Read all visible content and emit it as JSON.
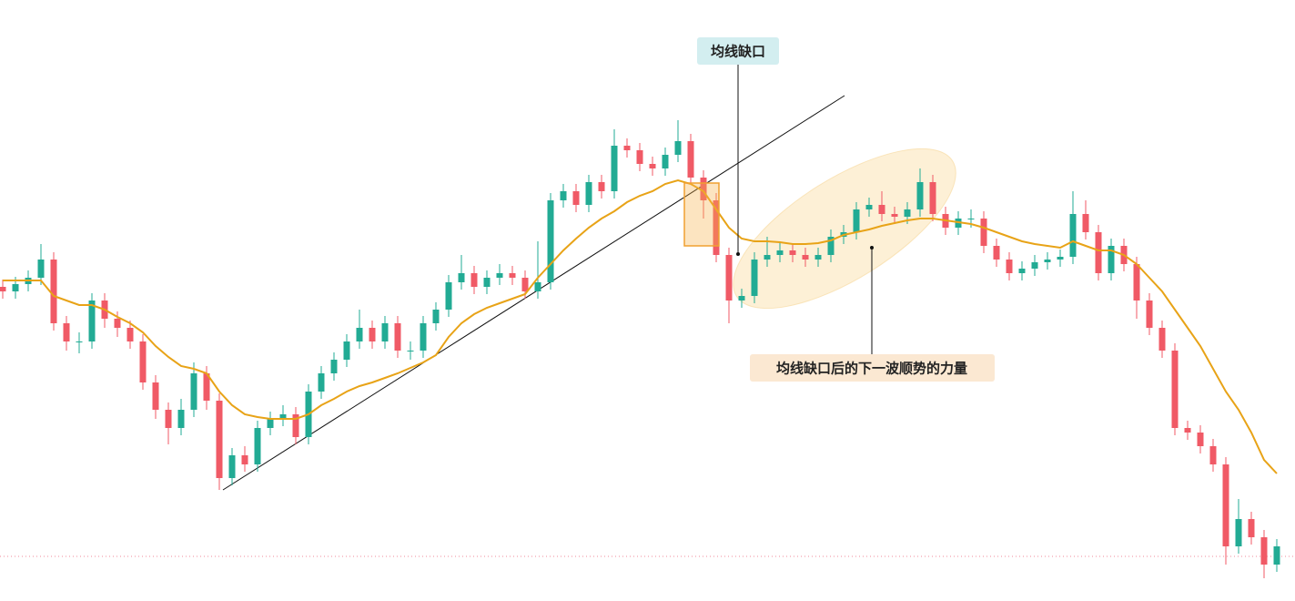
{
  "chart_data": {
    "type": "candlestick",
    "annotations": [
      "均线缺口",
      "均线缺口后的下一波顺势的力量"
    ],
    "ylim": [
      0,
      660
    ],
    "up_color": "#22ab94",
    "down_color": "#f05a66",
    "candles": {
      "open": [
        345,
        340,
        348,
        355,
        375,
        305,
        285,
        285,
        330,
        310,
        300,
        285,
        240,
        210,
        190,
        210,
        250,
        220,
        135,
        160,
        150,
        190,
        200,
        205,
        180,
        230,
        250,
        265,
        285,
        300,
        285,
        305,
        275,
        275,
        305,
        320,
        350,
        360,
        345,
        355,
        360,
        355,
        340,
        350,
        440,
        450,
        435,
        460,
        450,
        500,
        495,
        480,
        475,
        490,
        505,
        465,
        440,
        380,
        330,
        335,
        375,
        380,
        385,
        380,
        375,
        380,
        400,
        405,
        430,
        435,
        425,
        422,
        430,
        460,
        425,
        410,
        420,
        420,
        390,
        375,
        360,
        365,
        372,
        375,
        378,
        425,
        405,
        360,
        390,
        370,
        330,
        300,
        275,
        190,
        185,
        170,
        150,
        60,
        90,
        70,
        40
      ],
      "high": [
        353,
        356,
        363,
        392,
        383,
        313,
        295,
        338,
        338,
        318,
        308,
        293,
        248,
        218,
        222,
        262,
        258,
        228,
        168,
        170,
        198,
        208,
        215,
        213,
        238,
        258,
        273,
        293,
        320,
        308,
        313,
        313,
        285,
        313,
        328,
        358,
        380,
        368,
        363,
        370,
        368,
        363,
        395,
        448,
        458,
        458,
        468,
        468,
        518,
        508,
        503,
        488,
        498,
        528,
        513,
        473,
        448,
        388,
        343,
        383,
        400,
        393,
        393,
        388,
        388,
        408,
        413,
        438,
        443,
        450,
        433,
        438,
        475,
        468,
        433,
        428,
        430,
        428,
        398,
        383,
        373,
        380,
        383,
        386,
        450,
        440,
        413,
        398,
        398,
        378,
        338,
        308,
        283,
        198,
        193,
        178,
        158,
        112,
        98,
        78,
        68
      ],
      "low": [
        332,
        332,
        340,
        347,
        297,
        275,
        272,
        277,
        300,
        290,
        277,
        232,
        200,
        172,
        182,
        202,
        210,
        122,
        127,
        142,
        142,
        182,
        192,
        172,
        172,
        222,
        242,
        257,
        277,
        277,
        277,
        267,
        265,
        267,
        297,
        312,
        342,
        337,
        337,
        347,
        347,
        332,
        332,
        342,
        432,
        427,
        427,
        442,
        442,
        487,
        472,
        467,
        467,
        482,
        457,
        420,
        372,
        305,
        322,
        327,
        367,
        372,
        372,
        367,
        367,
        372,
        392,
        397,
        422,
        417,
        414,
        414,
        422,
        417,
        402,
        402,
        410,
        382,
        367,
        352,
        352,
        357,
        364,
        367,
        370,
        397,
        352,
        352,
        362,
        310,
        292,
        267,
        182,
        177,
        162,
        142,
        40,
        52,
        62,
        25,
        32
      ],
      "close": [
        340,
        348,
        355,
        375,
        305,
        285,
        285,
        330,
        310,
        300,
        285,
        240,
        210,
        190,
        210,
        250,
        220,
        135,
        160,
        150,
        190,
        200,
        205,
        180,
        230,
        250,
        265,
        285,
        300,
        285,
        305,
        275,
        275,
        305,
        320,
        350,
        360,
        345,
        355,
        360,
        355,
        340,
        350,
        440,
        450,
        435,
        460,
        450,
        500,
        495,
        480,
        475,
        490,
        505,
        465,
        440,
        380,
        330,
        335,
        375,
        380,
        385,
        380,
        375,
        380,
        400,
        405,
        430,
        435,
        425,
        422,
        430,
        460,
        425,
        410,
        420,
        420,
        390,
        375,
        360,
        365,
        372,
        375,
        378,
        425,
        405,
        360,
        390,
        370,
        330,
        300,
        275,
        190,
        185,
        170,
        150,
        60,
        90,
        70,
        40,
        60
      ]
    },
    "ma": {
      "color": "#e8a317",
      "values": [
        352,
        352,
        352,
        352,
        335,
        330,
        325,
        325,
        320,
        312,
        305,
        295,
        280,
        268,
        258,
        255,
        250,
        230,
        215,
        205,
        202,
        200,
        200,
        200,
        205,
        215,
        222,
        230,
        236,
        240,
        245,
        250,
        256,
        262,
        270,
        290,
        305,
        315,
        322,
        327,
        332,
        337,
        355,
        370,
        385,
        398,
        410,
        420,
        428,
        438,
        445,
        450,
        458,
        462,
        458,
        450,
        430,
        410,
        398,
        395,
        395,
        394,
        392,
        392,
        393,
        396,
        402,
        405,
        408,
        412,
        415,
        418,
        420,
        420,
        418,
        416,
        414,
        410,
        405,
        400,
        395,
        392,
        390,
        388,
        395,
        390,
        385,
        385,
        380,
        370,
        355,
        340,
        320,
        300,
        280,
        255,
        230,
        210,
        185,
        155,
        140
      ]
    }
  }
}
